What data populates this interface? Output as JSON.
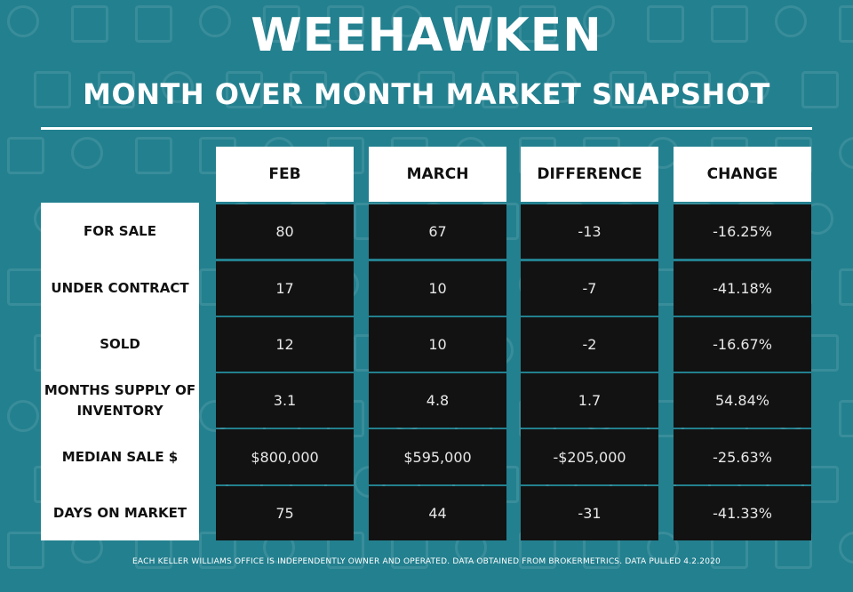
{
  "title": "WEEHAWKEN",
  "subtitle": "MONTH OVER MONTH MARKET SNAPSHOT",
  "columns": [
    "FEB",
    "MARCH",
    "DIFFERENCE",
    "CHANGE"
  ],
  "rows": [
    {
      "label": "FOR SALE",
      "values": [
        "80",
        "67",
        "-13",
        "-16.25%"
      ]
    },
    {
      "label": "UNDER CONTRACT",
      "values": [
        "17",
        "10",
        "-7",
        "-41.18%"
      ]
    },
    {
      "label": "SOLD",
      "values": [
        "12",
        "10",
        "-2",
        "-16.67%"
      ]
    },
    {
      "label": "MONTHS SUPPLY OF INVENTORY",
      "values": [
        "3.1",
        "4.8",
        "1.7",
        "54.84%"
      ]
    },
    {
      "label": "MEDIAN SALE $",
      "values": [
        "$800,000",
        "$595,000",
        "-$205,000",
        "-25.63%"
      ]
    },
    {
      "label": "DAYS ON MARKET",
      "values": [
        "75",
        "44",
        "-31",
        "-41.33%"
      ]
    }
  ],
  "footer": "EACH KELLER WILLIAMS OFFICE IS INDEPENDENTLY OWNER AND OPERATED. DATA OBTAINED FROM BROKERMETRICS. DATA PULLED 4.2.2020",
  "colors": {
    "background": "#23808f",
    "cell": "#121212",
    "header": "#ffffff"
  }
}
